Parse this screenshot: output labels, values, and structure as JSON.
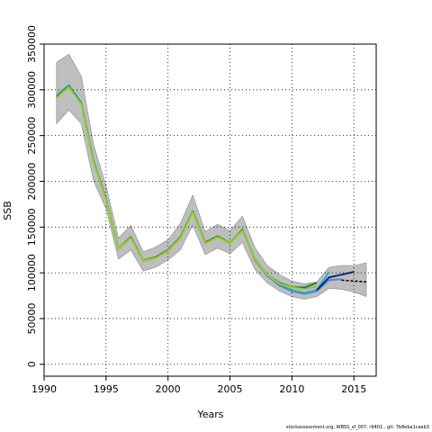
{
  "chart_data": {
    "type": "line",
    "xlabel": "Years",
    "ylabel": "SSB",
    "xlim": [
      1990,
      2016.8
    ],
    "ylim": [
      -13000,
      350000
    ],
    "x_ticks": [
      1990,
      1995,
      2000,
      2005,
      2010,
      2015
    ],
    "y_ticks": [
      0,
      50000,
      100000,
      150000,
      200000,
      250000,
      300000,
      350000
    ],
    "grid": "dotted",
    "legend": "none",
    "bands": [
      {
        "color": "#bebebe",
        "x": [
          1991,
          1992,
          1993,
          1994,
          1995,
          1996,
          1997,
          1998,
          1999,
          2000,
          2001,
          2002,
          2003,
          2004,
          2005,
          2006,
          2007,
          2008,
          2009,
          2010,
          2011,
          2012,
          2013,
          2014,
          2015,
          2016
        ],
        "lower": [
          263000,
          278000,
          263000,
          200000,
          170000,
          115000,
          125000,
          102000,
          106000,
          114000,
          125000,
          152000,
          120000,
          127000,
          121000,
          133000,
          104000,
          89000,
          80000,
          74000,
          71000,
          74000,
          83000,
          82000,
          79000,
          74000
        ],
        "upper": [
          330000,
          339000,
          315000,
          240000,
          195000,
          138000,
          152000,
          123000,
          128000,
          136000,
          154000,
          185000,
          145000,
          153000,
          146000,
          162000,
          128000,
          108000,
          98000,
          91000,
          88000,
          90000,
          106000,
          108000,
          108000,
          111000
        ]
      }
    ],
    "series": [
      {
        "color": "#1eb4c8",
        "x": [
          1991,
          1992,
          1993,
          1994,
          1995,
          1996,
          1997,
          1998,
          1999,
          2000,
          2001,
          2002,
          2003,
          2004,
          2005,
          2006,
          2007,
          2008,
          2009,
          2010,
          2011,
          2012,
          2013
        ],
        "values": [
          294000,
          305000,
          286000,
          222000,
          180000,
          126000,
          139000,
          113000,
          117000,
          124000,
          138000,
          167000,
          133000,
          140000,
          133000,
          147000,
          115000,
          97000,
          87000,
          81000,
          78000,
          81000,
          101000
        ]
      },
      {
        "color": "#4a8fd0",
        "x": [
          1991,
          1992,
          1993,
          1994,
          1995,
          1996,
          1997,
          1998,
          1999,
          2000,
          2001,
          2002,
          2003,
          2004,
          2005,
          2006,
          2007,
          2008,
          2009,
          2010,
          2011,
          2012,
          2013,
          2014
        ],
        "values": [
          293000,
          304000,
          285000,
          221000,
          180000,
          126000,
          139000,
          113000,
          117000,
          124000,
          138000,
          167000,
          132000,
          140000,
          132000,
          147000,
          114000,
          97000,
          86000,
          80000,
          77000,
          80000,
          92000,
          93000
        ]
      },
      {
        "color": "#78c850",
        "x": [
          1991,
          1992,
          1993,
          1994,
          1995,
          1996,
          1997,
          1998,
          1999,
          2000,
          2001,
          2002,
          2003,
          2004,
          2005,
          2006,
          2007,
          2008,
          2009,
          2010,
          2011,
          2012
        ],
        "values": [
          292000,
          304000,
          285000,
          221000,
          180000,
          127000,
          139000,
          114000,
          117000,
          125000,
          139000,
          167000,
          133000,
          140000,
          133000,
          147000,
          116000,
          98000,
          89000,
          85000,
          83000,
          85000
        ]
      },
      {
        "color": "#2e7d32",
        "x": [
          1991,
          1992,
          1993,
          1994,
          1995,
          1996,
          1997,
          1998,
          1999,
          2000,
          2001,
          2002,
          2003,
          2004,
          2005,
          2006,
          2007,
          2008,
          2009,
          2010,
          2011,
          2012
        ],
        "values": [
          292000,
          304000,
          285000,
          221000,
          180000,
          126000,
          139000,
          113000,
          117000,
          125000,
          139000,
          167000,
          133000,
          140000,
          132000,
          147000,
          115000,
          98000,
          89000,
          84000,
          84000,
          89000
        ]
      },
      {
        "color": "#9acd32",
        "x": [
          1991,
          1992,
          1993,
          1994,
          1995,
          1996,
          1997,
          1998,
          1999,
          2000,
          2001,
          2002,
          2003,
          2004,
          2005,
          2006,
          2007,
          2008,
          2009,
          2010,
          2011
        ],
        "values": [
          291000,
          303000,
          284000,
          220000,
          179000,
          126000,
          138000,
          113000,
          116000,
          124000,
          138000,
          166000,
          132000,
          139000,
          132000,
          146000,
          115000,
          98000,
          88000,
          84000,
          82000
        ]
      },
      {
        "color": "#1a237e",
        "x": [
          2012,
          2013,
          2014,
          2015
        ],
        "values": [
          81000,
          95000,
          98000,
          101000
        ]
      },
      {
        "color": "#000000",
        "dashed": true,
        "x": [
          2014,
          2015,
          2016
        ],
        "values": [
          92000,
          91000,
          90000
        ]
      }
    ]
  },
  "footer": {
    "note": "stockassessment.org, WBSS_sf_007, r9401 , git: 7b8eba1caeb3"
  }
}
